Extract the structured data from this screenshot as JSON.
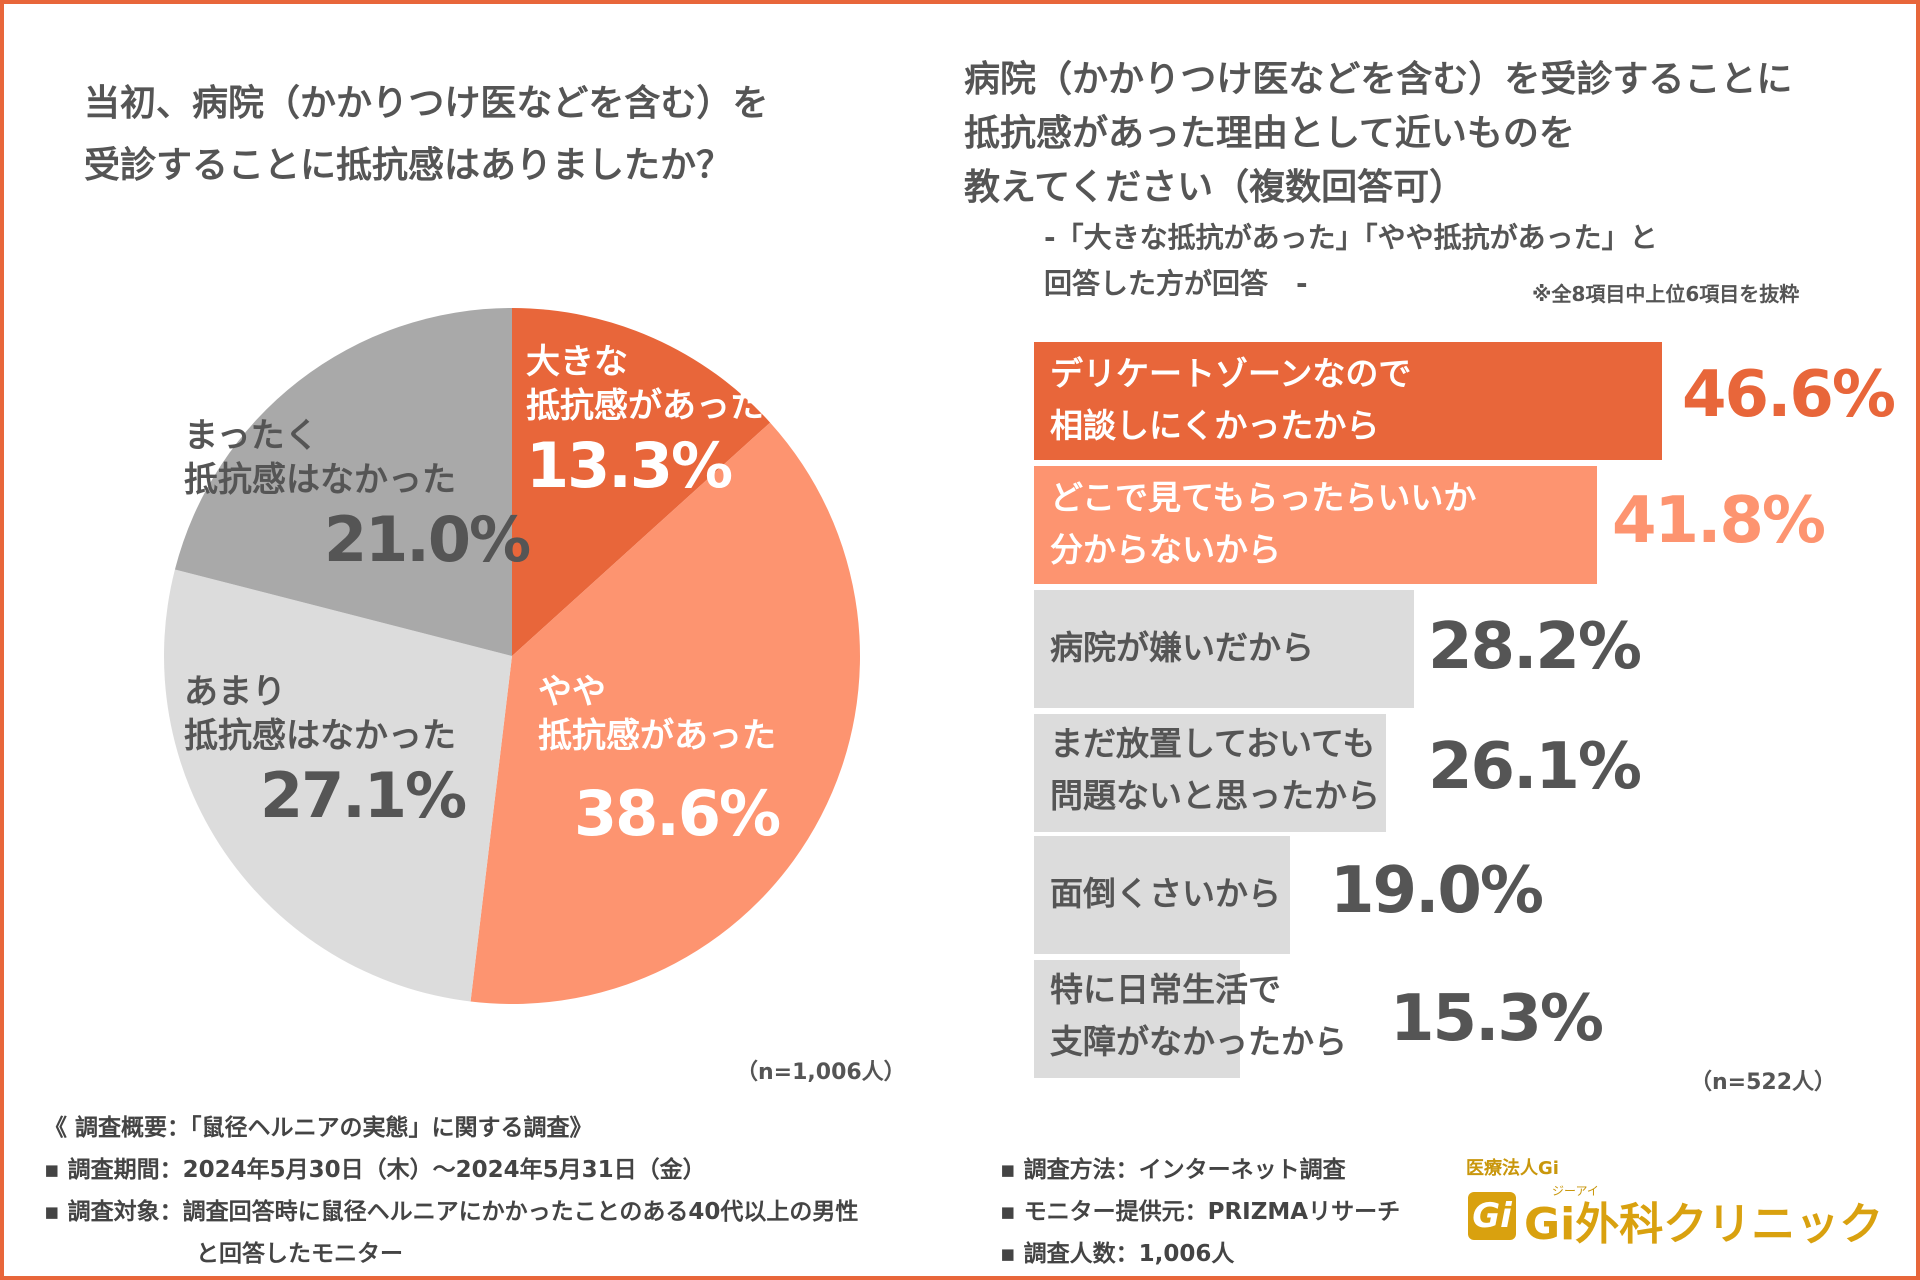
{
  "colors": {
    "dark_orange": "#e8663a",
    "light_orange": "#fd9470",
    "gray": "#a9a9a9",
    "light_gray": "#dcdcdc",
    "text": "#555555",
    "white": "#ffffff"
  },
  "pie": {
    "title_line1": "当初、病院（かかりつけ医などを含む）を",
    "title_line2": "受診することに抵抗感はありましたか？",
    "n_label": "（n=1,006人）"
  },
  "bar": {
    "title_line1": "病院（かかりつけ医などを含む）を受診することに",
    "title_line2": "抵抗感があった理由として近いものを",
    "title_line3": "教えてください（複数回答可）",
    "subtitle_line1": "-「大きな抵抗があった」「やや抵抗があった」と",
    "subtitle_line2": "回答した方が回答　-",
    "note": "※全8項目中上位6項目を抜粋",
    "n_label": "（n=522人）"
  },
  "chart_data": [
    {
      "type": "pie",
      "slices": [
        {
          "label_lines": [
            "大きな",
            "抵抗感があった"
          ],
          "value": 13.3,
          "display": "13.3%",
          "color": "#e8663a"
        },
        {
          "label_lines": [
            "やや",
            "抵抗感があった"
          ],
          "value": 38.6,
          "display": "38.6%",
          "color": "#fd9470"
        },
        {
          "label_lines": [
            "あまり",
            "抵抗感はなかった"
          ],
          "value": 27.1,
          "display": "27.1%",
          "color": "#dcdcdc"
        },
        {
          "label_lines": [
            "まったく",
            "抵抗感はなかった"
          ],
          "value": 21.0,
          "display": "21.0%",
          "color": "#a9a9a9"
        }
      ]
    },
    {
      "type": "bar",
      "orientation": "horizontal",
      "xlim": [
        0,
        65
      ],
      "bars": [
        {
          "label_lines": [
            "デリケートゾーンなので",
            "相談しにくかったから"
          ],
          "value": 46.6,
          "display": "46.6%",
          "color": "#e8663a"
        },
        {
          "label_lines": [
            "どこで見てもらったらいいか",
            "分からないから"
          ],
          "value": 41.8,
          "display": "41.8%",
          "color": "#fd9470"
        },
        {
          "label_lines": [
            "病院が嫌いだから"
          ],
          "value": 28.2,
          "display": "28.2%",
          "color": "#dcdcdc"
        },
        {
          "label_lines": [
            "まだ放置しておいても",
            "問題ないと思ったから"
          ],
          "value": 26.1,
          "display": "26.1%",
          "color": "#dcdcdc"
        },
        {
          "label_lines": [
            "面倒くさいから"
          ],
          "value": 19.0,
          "display": "19.0%",
          "color": "#dcdcdc"
        },
        {
          "label_lines": [
            "特に日常生活で",
            "支障がなかったから"
          ],
          "value": 15.3,
          "display": "15.3%",
          "color": "#dcdcdc"
        }
      ]
    }
  ],
  "footer": {
    "survey_title": "《 調査概要：「鼠径ヘルニアの実態」に関する調査》",
    "period": "▪ 調査期間：2024年5月30日（木）〜2024年5月31日（金）",
    "target_line1": "▪ 調査対象：調査回答時に鼠径ヘルニアにかかったことのある40代以上の男性",
    "target_line2": "と回答したモニター",
    "method": "▪ 調査方法：インターネット調査",
    "provider": "▪ モニター提供元：PRIZMAリサーチ",
    "count": "▪ 調査人数：1,006人"
  },
  "logo": {
    "org": "医療法人Gi",
    "ruby": "ジーアイ",
    "mark": "Gi",
    "name": "Gi外科クリニック"
  }
}
